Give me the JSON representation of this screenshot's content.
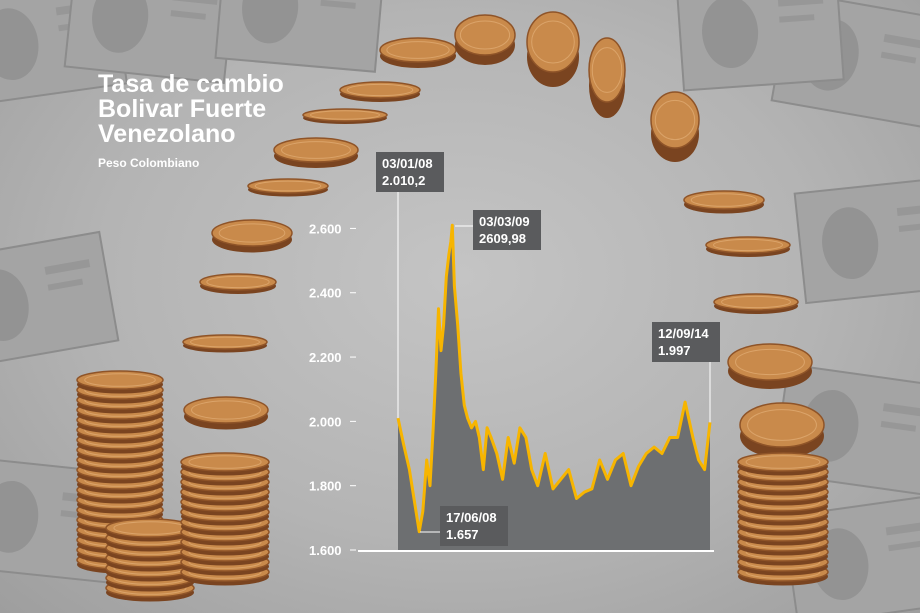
{
  "title_lines": [
    "Tasa de cambio",
    "Bolivar Fuerte",
    "Venezolano"
  ],
  "subtitle": "Peso Colombiano",
  "colors": {
    "line": "#f7b500",
    "area": "#6d6f71",
    "label_box": "#5a5b5d",
    "text": "#ffffff"
  },
  "chart_data": {
    "type": "area",
    "title": "Tasa de cambio Bolivar Fuerte Venezolano",
    "subtitle": "Peso Colombiano",
    "xlabel": "",
    "ylabel": "",
    "ylim": [
      1600,
      2620
    ],
    "yticks": [
      1600,
      1800,
      2000,
      2200,
      2400,
      2600
    ],
    "ytick_labels": [
      "1.600",
      "1.800",
      "2.000",
      "2.200",
      "2.400",
      "2.600"
    ],
    "grid": false,
    "series": [
      {
        "x": [
          "2008-01-03",
          "2008-02-15",
          "2008-04-01",
          "2008-05-15",
          "2008-06-17",
          "2008-07-15",
          "2008-08-15",
          "2008-09-10",
          "2008-10-05",
          "2008-10-25",
          "2008-11-15",
          "2008-12-05",
          "2008-12-25",
          "2009-01-15",
          "2009-02-05",
          "2009-02-20",
          "2009-03-03",
          "2009-03-20",
          "2009-04-15",
          "2009-05-10",
          "2009-06-05",
          "2009-07-01",
          "2009-08-01",
          "2009-09-01",
          "2009-10-01",
          "2009-11-01",
          "2009-12-01",
          "2010-01-01",
          "2010-02-15",
          "2010-04-01",
          "2010-05-15",
          "2010-07-01",
          "2010-08-15",
          "2010-10-01",
          "2010-11-15",
          "2011-01-01",
          "2011-03-01",
          "2011-05-01",
          "2011-07-01",
          "2011-09-01",
          "2011-11-01",
          "2012-01-01",
          "2012-03-01",
          "2012-05-01",
          "2012-07-01",
          "2012-09-01",
          "2012-11-01",
          "2013-01-01",
          "2013-03-01",
          "2013-05-01",
          "2013-07-01",
          "2013-09-01",
          "2013-11-01",
          "2014-01-01",
          "2014-03-01",
          "2014-05-01",
          "2014-06-15",
          "2014-08-01",
          "2014-09-12"
        ],
        "values": [
          2010.2,
          1930,
          1850,
          1740,
          1657,
          1720,
          1880,
          1800,
          1980,
          2150,
          2350,
          2220,
          2300,
          2450,
          2520,
          2560,
          2609.98,
          2420,
          2300,
          2150,
          2050,
          2010,
          1980,
          2000,
          1950,
          1850,
          1980,
          1950,
          1900,
          1820,
          1950,
          1870,
          1980,
          1950,
          1850,
          1800,
          1900,
          1790,
          1820,
          1850,
          1760,
          1780,
          1790,
          1880,
          1820,
          1880,
          1900,
          1800,
          1860,
          1900,
          1920,
          1900,
          1950,
          1950,
          2060,
          1950,
          1880,
          1850,
          1997
        ]
      }
    ],
    "annotations": [
      {
        "date": "03/01/08",
        "value": "2.010,2"
      },
      {
        "date": "03/03/09",
        "value": "2609,98"
      },
      {
        "date": "17/06/08",
        "value": "1.657"
      },
      {
        "date": "12/09/14",
        "value": "1.997"
      }
    ]
  }
}
